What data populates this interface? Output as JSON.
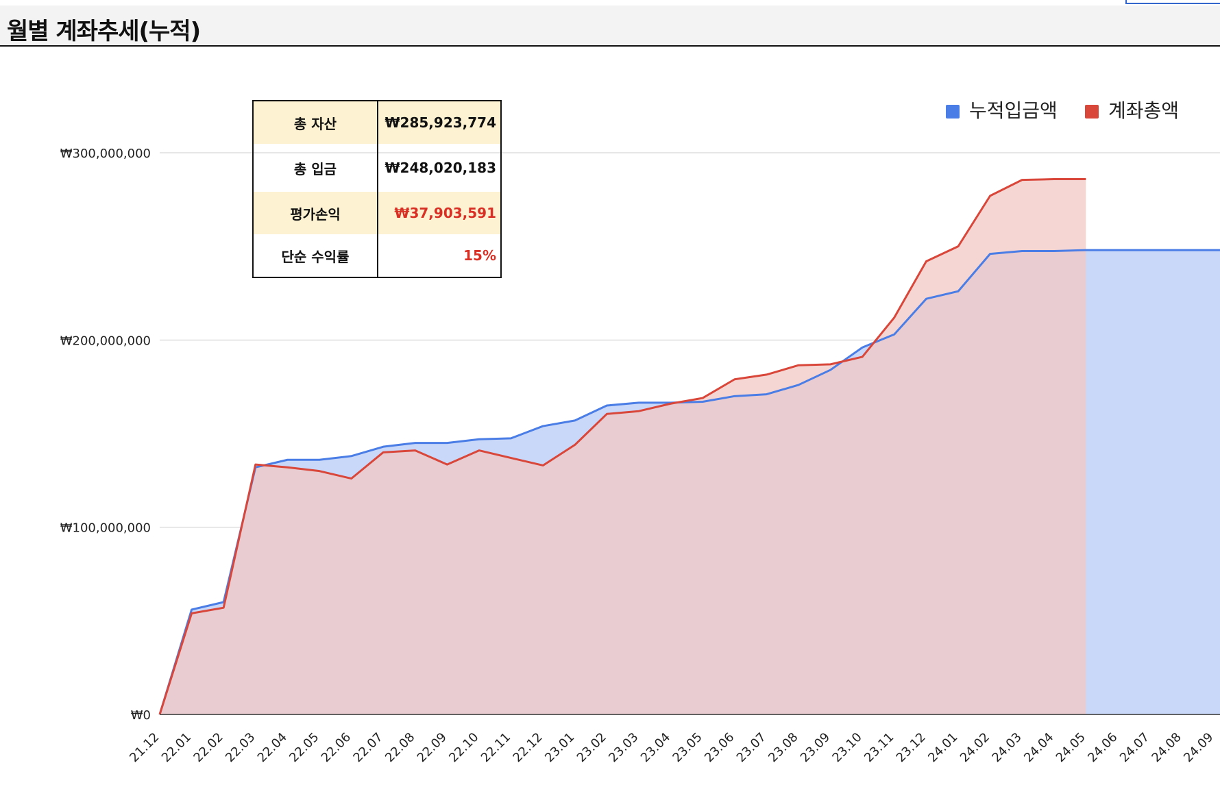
{
  "page_title": "월별 계좌추세(누적)",
  "summary": {
    "rows": [
      {
        "label": "총 자산",
        "value": "₩285,923,774"
      },
      {
        "label": "총 입금",
        "value": "₩248,020,183"
      },
      {
        "label": "평가손익",
        "value": "₩37,903,591"
      },
      {
        "label": "단순 수익률",
        "value": "15%"
      }
    ]
  },
  "colors": {
    "deposit": "#4a7de5",
    "total": "#d9463a",
    "deposit_fill": "#c9d8f8",
    "total_fill": "#f2c8c4",
    "highlight_text": "#d93025",
    "shaded_row": "#fdf3d2"
  },
  "chart_data": {
    "type": "area",
    "title": "",
    "xlabel": "",
    "ylabel": "",
    "ylim": [
      0,
      300000000
    ],
    "grid": true,
    "legend_position": "top-right",
    "yticks": [
      "₩0",
      "₩100,000,000",
      "₩200,000,000",
      "₩300,000,000"
    ],
    "categories": [
      "21.12",
      "22.01",
      "22.02",
      "22.03",
      "22.04",
      "22.05",
      "22.06",
      "22.07",
      "22.08",
      "22.09",
      "22.10",
      "22.11",
      "22.12",
      "23.01",
      "23.02",
      "23.03",
      "23.04",
      "23.05",
      "23.06",
      "23.07",
      "23.08",
      "23.09",
      "23.10",
      "23.11",
      "23.12",
      "24.01",
      "24.02",
      "24.03",
      "24.04",
      "24.05",
      "24.06",
      "24.07",
      "24.08",
      "24.09"
    ],
    "series": [
      {
        "name": "누적입금액",
        "color": "#4a7de5",
        "values": [
          0,
          56000000,
          60000000,
          132000000,
          136000000,
          136000000,
          138000000,
          143000000,
          145000000,
          145000000,
          147000000,
          147500000,
          154000000,
          157000000,
          165000000,
          166500000,
          166500000,
          167000000,
          170000000,
          171000000,
          176000000,
          184000000,
          196000000,
          203000000,
          222000000,
          226000000,
          246000000,
          247500000,
          247500000,
          248020183,
          248020183,
          248020183,
          248020183,
          248020183
        ]
      },
      {
        "name": "계좌총액",
        "color": "#d9463a",
        "values": [
          0,
          54000000,
          57000000,
          133500000,
          132000000,
          130000000,
          126000000,
          140000000,
          141000000,
          133500000,
          141000000,
          137000000,
          133000000,
          144000000,
          160500000,
          162000000,
          166000000,
          169000000,
          179000000,
          181500000,
          186500000,
          187000000,
          191000000,
          212000000,
          242000000,
          250000000,
          277000000,
          285500000,
          285900000,
          285923774,
          null,
          null,
          null,
          null
        ]
      }
    ]
  }
}
